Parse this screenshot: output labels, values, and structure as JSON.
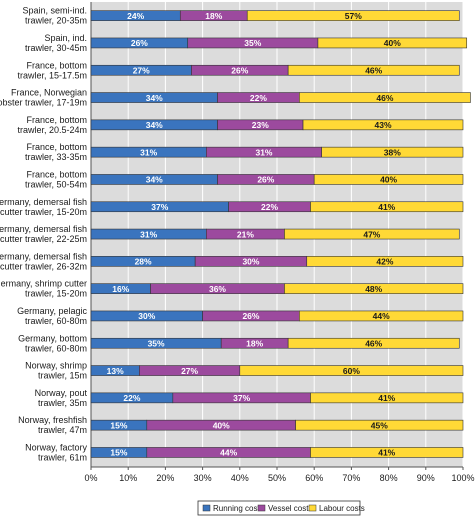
{
  "chart_data": {
    "type": "bar",
    "orientation": "horizontal",
    "stacked": true,
    "categories": [
      [
        "Spain, semi-ind.",
        "trawler, 20-35m"
      ],
      [
        "Spain, ind.",
        "trawler, 30-45m"
      ],
      [
        "France, bottom",
        "trawler, 15-17.5m"
      ],
      [
        "France, Norwegian",
        "lobster trawler, 17-19m"
      ],
      [
        "France, bottom",
        "trawler, 20.5-24m"
      ],
      [
        "France, bottom",
        "trawler, 33-35m"
      ],
      [
        "France, bottom",
        "trawler, 50-54m"
      ],
      [
        "Germany, demersal fish",
        "cutter trawler, 15-20m"
      ],
      [
        "Germany, demersal fish",
        "cutter trawler, 22-25m"
      ],
      [
        "Germany, demersal fish",
        "cutter trawler, 26-32m"
      ],
      [
        "Germany, shrimp cutter",
        "trawler, 15-20m"
      ],
      [
        "Germany, pelagic",
        "trawler, 60-80m"
      ],
      [
        "Germany, bottom",
        "trawler, 60-80m"
      ],
      [
        "Norway, shrimp",
        "trawler, 15m"
      ],
      [
        "Norway, pout",
        "trawler, 35m"
      ],
      [
        "Norway, freshfish",
        "trawler, 47m"
      ],
      [
        "Norway, factory",
        "trawler, 61m"
      ]
    ],
    "series": [
      {
        "name": "Running costs",
        "color": "#3a74be",
        "label_color": "#ffffff",
        "values": [
          24,
          26,
          27,
          34,
          34,
          31,
          34,
          37,
          31,
          28,
          16,
          30,
          35,
          13,
          22,
          15,
          15
        ]
      },
      {
        "name": "Vessel costs",
        "color": "#9c4a9e",
        "label_color": "#ffffff",
        "values": [
          18,
          35,
          26,
          22,
          23,
          31,
          26,
          22,
          21,
          30,
          36,
          26,
          18,
          27,
          37,
          40,
          44
        ]
      },
      {
        "name": "Labour costs",
        "color": "#ffd936",
        "label_color": "#1a1a1a",
        "values": [
          57,
          40,
          46,
          46,
          43,
          38,
          40,
          41,
          47,
          42,
          48,
          44,
          46,
          60,
          41,
          45,
          41
        ]
      }
    ],
    "data_label_suffix": "%",
    "x_ticks": [
      "0%",
      "10%",
      "20%",
      "30%",
      "40%",
      "50%",
      "60%",
      "70%",
      "80%",
      "90%",
      "100%"
    ],
    "xlim": [
      0,
      100
    ],
    "grid": true,
    "legend_position": "bottom-center",
    "plot_background": "#dcdcdc"
  }
}
